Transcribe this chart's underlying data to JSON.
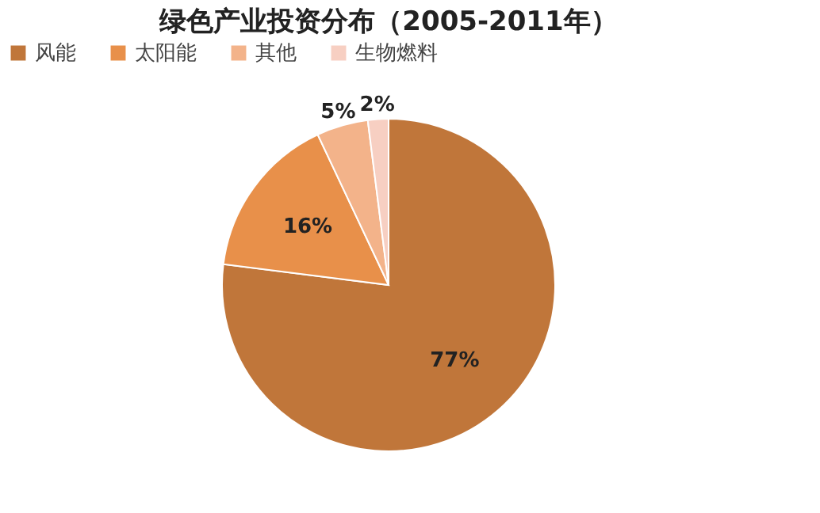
{
  "chart_data": {
    "type": "pie",
    "title": "绿色产业投资分布（2005-2011年）",
    "categories": [
      "风能",
      "太阳能",
      "其他",
      "生物燃料"
    ],
    "values": [
      77,
      16,
      5,
      2
    ],
    "colors": [
      "#c0763a",
      "#e8904a",
      "#f3b38a",
      "#f7cfc2"
    ],
    "value_labels": [
      "77%",
      "16%",
      "5%",
      "2%"
    ],
    "data_labels": true,
    "legend": "top"
  }
}
